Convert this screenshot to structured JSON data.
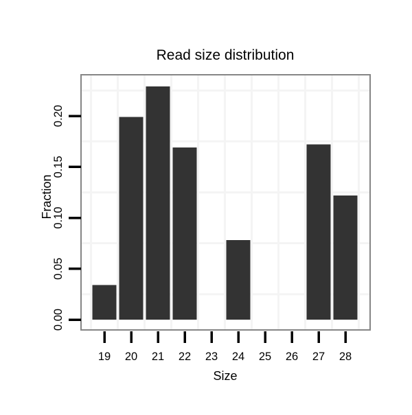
{
  "chart_data": {
    "type": "bar",
    "title": "Read size distribution",
    "xlabel": "Size",
    "ylabel": "Fraction",
    "categories": [
      "19",
      "20",
      "21",
      "22",
      "23",
      "24",
      "25",
      "26",
      "27",
      "28"
    ],
    "values": [
      0.034,
      0.199,
      0.229,
      0.169,
      0,
      0.078,
      0,
      0,
      0.172,
      0.122
    ],
    "y_ticks": [
      0.0,
      0.05,
      0.1,
      0.15,
      0.2
    ],
    "y_tick_labels": [
      "0.00",
      "0.05",
      "0.10",
      "0.15",
      "0.20"
    ],
    "ylim": [
      0,
      0.241
    ],
    "grid": "minor-only",
    "legend": "none",
    "colors": {
      "bar_fill": "#333333",
      "panel_border": "#858585",
      "panel_background": "#ffffff",
      "gridline": "#f4f4f4",
      "tick": "#000000",
      "text": "#000000"
    }
  }
}
